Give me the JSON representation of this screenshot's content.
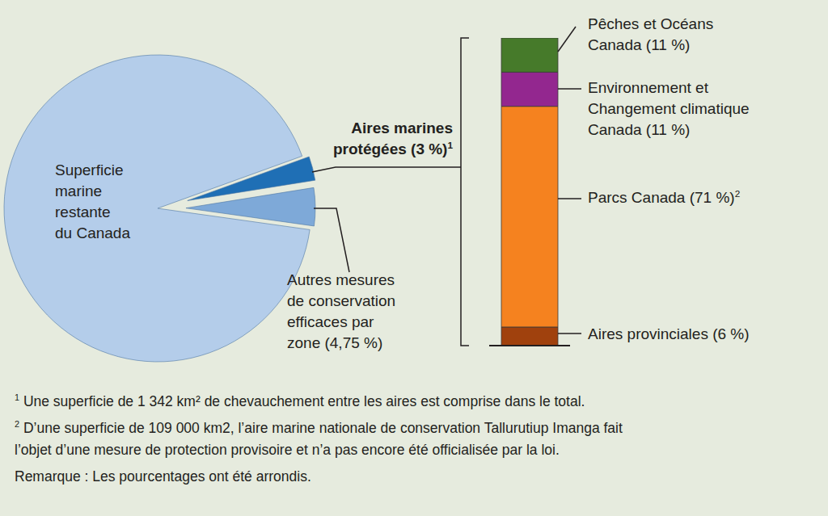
{
  "chart_data": [
    {
      "type": "pie",
      "categories": [
        "Superficie\nmarine\nrestante\ndu Canada",
        "Aires marines\nprotégées (3 %)",
        "Autres mesures\nde conservation\nefficaces par\nzone   (4,75 %)"
      ],
      "values": [
        92.25,
        3,
        4.75
      ],
      "colors": [
        "#b4cdea",
        "#1f6fb5",
        "#7ea9d8"
      ],
      "footnote_marks": [
        null,
        "1",
        null
      ]
    },
    {
      "type": "bar",
      "stacked": true,
      "tick_labels": false,
      "ylim": [
        0,
        99
      ],
      "categories": [
        null
      ],
      "series": [
        {
          "name": "Aires provinciales (6 %)",
          "color": "#a0410d",
          "values": [
            6
          ],
          "footnote_mark": null
        },
        {
          "name": "Parcs Canada (71 %)",
          "color": "#f5821f",
          "values": [
            71
          ],
          "footnote_mark": "2"
        },
        {
          "name": "Environnement et\nChangement climatique\nCanada (11 %)",
          "color": "#93278f",
          "values": [
            11
          ],
          "footnote_mark": null
        },
        {
          "name": "Pêches et Océans\nCanada (11 %)",
          "color": "#467a2a",
          "values": [
            11
          ],
          "footnote_mark": null
        }
      ]
    }
  ],
  "footnotes": [
    {
      "mark": "1",
      "text": "Une superficie de 1 342 km² de chevauchement entre les aires est comprise dans le total."
    },
    {
      "mark": "2",
      "text": "D’une superficie de 109 000 km2, l’aire marine nationale de conservation Tallurutiup Imanga fait\nl’objet d’une mesure de protection provisoire et n’a pas encore été officialisée par la loi."
    }
  ],
  "note": "Remarque : Les pourcentages ont été arrondis."
}
